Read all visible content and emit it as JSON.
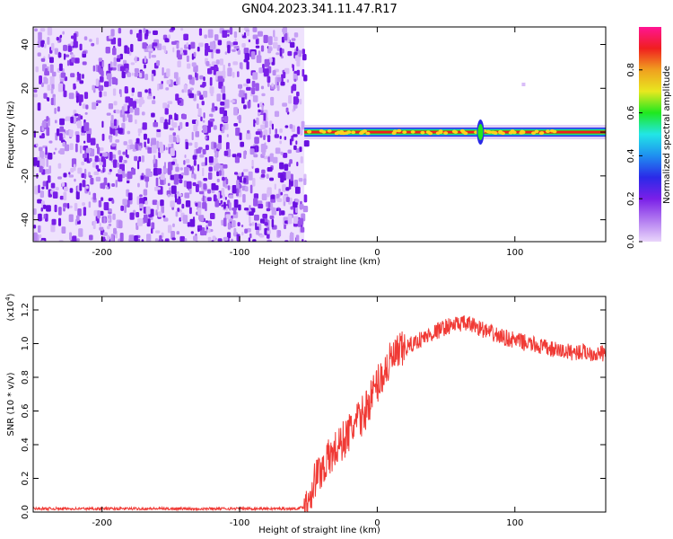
{
  "title": "GN04.2023.341.11.47.R17",
  "colors": {
    "snr_line": "#f03a35",
    "noise_purple": "#7a1fe8",
    "colormap": [
      "#e9d6fb",
      "#b27bf0",
      "#7a1fe8",
      "#2a2ae8",
      "#1f8ff0",
      "#22e6e6",
      "#1fe81f",
      "#e8e81f",
      "#f0a01f",
      "#f01f1f",
      "#ff1493"
    ]
  },
  "chart_data": [
    {
      "type": "heatmap",
      "xlabel": "Height of straight line (km)",
      "ylabel": "Frequency (Hz)",
      "xlim": [
        -250,
        166
      ],
      "ylim": [
        -50,
        48
      ],
      "xticks": [
        -200,
        -100,
        0,
        100
      ],
      "xtick_labels": [
        "-200",
        "-100",
        "0",
        "100"
      ],
      "yticks": [
        -40,
        -20,
        0,
        20,
        40
      ],
      "ytick_labels": [
        "-40",
        "-20",
        "0",
        "20",
        "40"
      ],
      "noise_region_x": [
        -250,
        -53
      ],
      "signal_line_hz": 0,
      "signal_start_km": -53,
      "colorbar": {
        "label": "Normalized spectral amplitude",
        "range": [
          0,
          1
        ],
        "ticks": [
          0.0,
          0.2,
          0.4,
          0.6,
          0.8
        ],
        "tick_labels": [
          "0.0",
          "0.2",
          "0.4",
          "0.6",
          "0.8"
        ]
      }
    },
    {
      "type": "line",
      "xlabel": "Height of straight line (km)",
      "ylabel": "SNR (10 * v/v)",
      "yscale_label": "(x10",
      "yscale_exp": "4",
      "xlim": [
        -250,
        166
      ],
      "ylim": [
        0,
        1.28
      ],
      "xticks": [
        -200,
        -100,
        0,
        100
      ],
      "xtick_labels": [
        "-200",
        "-100",
        "0",
        "100"
      ],
      "yticks": [
        0.0,
        0.2,
        0.4,
        0.6,
        0.8,
        1.0,
        1.2
      ],
      "ytick_labels": [
        "0.0",
        "0.2",
        "0.4",
        "0.6",
        "0.8",
        "1.0",
        "1.2"
      ],
      "series": [
        {
          "x": [
            -250,
            -200,
            -150,
            -100,
            -60,
            -52,
            -45,
            -35,
            -25,
            -18,
            -10,
            0,
            10,
            20,
            30,
            40,
            50,
            60,
            70,
            80,
            90,
            100,
            110,
            120,
            130,
            140,
            150,
            160,
            166
          ],
          "y": [
            0.02,
            0.02,
            0.02,
            0.02,
            0.02,
            0.03,
            0.2,
            0.32,
            0.42,
            0.5,
            0.58,
            0.76,
            0.9,
            0.97,
            1.02,
            1.06,
            1.1,
            1.12,
            1.11,
            1.07,
            1.04,
            1.02,
            1.0,
            0.98,
            0.96,
            0.95,
            0.95,
            0.94,
            0.94
          ]
        }
      ]
    }
  ]
}
